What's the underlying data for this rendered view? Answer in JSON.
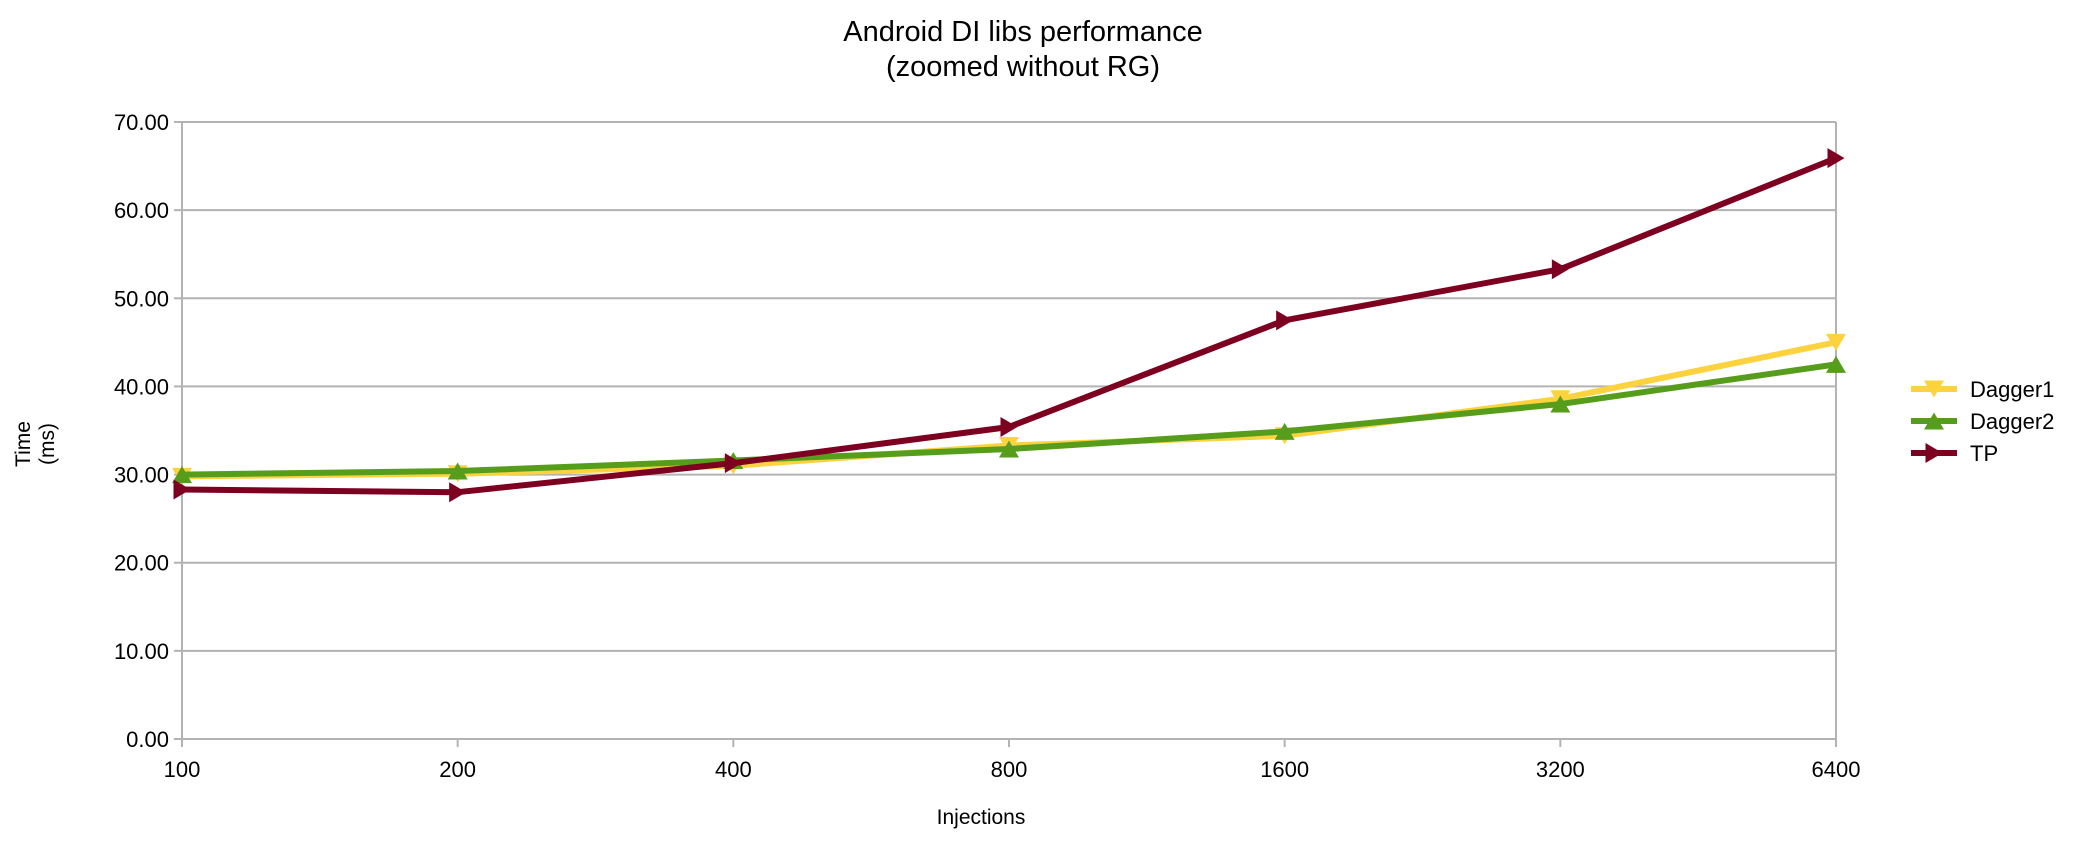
{
  "chart_data": {
    "type": "line",
    "title": "Android DI libs performance",
    "subtitle": "(zoomed without RG)",
    "xlabel": "Injections",
    "ylabel_line1": "Time",
    "ylabel_line2": "(ms)",
    "categories": [
      "100",
      "200",
      "400",
      "800",
      "1600",
      "3200",
      "6400"
    ],
    "ylim": [
      0,
      70
    ],
    "yticks": [
      0,
      10,
      20,
      30,
      40,
      50,
      60,
      70
    ],
    "ytick_labels": [
      "0.00",
      "10.00",
      "20.00",
      "30.00",
      "40.00",
      "50.00",
      "60.00",
      "70.00"
    ],
    "grid": true,
    "legend_position": "right",
    "series": [
      {
        "name": "Dagger1",
        "color": "#fcd23f",
        "marker": "triangle-down",
        "values": [
          29.8,
          30.1,
          31.0,
          33.3,
          34.4,
          38.6,
          45.0
        ]
      },
      {
        "name": "Dagger2",
        "color": "#579d1c",
        "marker": "triangle-up",
        "values": [
          30.0,
          30.4,
          31.6,
          32.9,
          34.9,
          38.0,
          42.5
        ]
      },
      {
        "name": "TP",
        "color": "#7e0021",
        "marker": "triangle-right",
        "values": [
          28.3,
          28.0,
          31.3,
          35.4,
          47.5,
          53.3,
          65.9
        ]
      }
    ]
  }
}
